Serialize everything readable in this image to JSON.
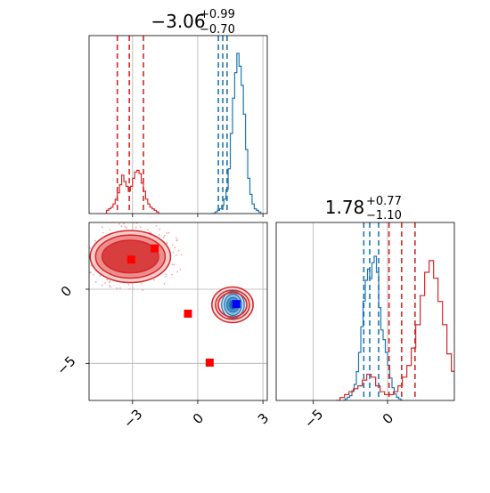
{
  "chart_data": {
    "type": "corner",
    "parameters": [
      {
        "title_main": "−3.06",
        "title_sup": "+0.99",
        "title_sub": "−0.70"
      },
      {
        "title_main": "1.78",
        "title_sup": "+0.77",
        "title_sub": "−1.10"
      }
    ],
    "x1_range": [
      -5.0,
      3.2
    ],
    "x2_range": [
      -7.5,
      4.5
    ],
    "x1_ticks": [
      -3,
      0,
      3
    ],
    "x1_tick_labels": [
      "−3",
      "0",
      "3"
    ],
    "x2_ticks": [
      -5,
      0
    ],
    "x2_tick_labels": [
      "−5",
      "0"
    ],
    "grid": true,
    "colors": {
      "blue": "#1f77b4",
      "red": "#d62728",
      "marker_red": "#ff0000",
      "marker_blue": "#0000ff",
      "grid": "#b0b0b0"
    },
    "series": [
      {
        "color": "blue",
        "hist1": {
          "start": 0.6,
          "step": 0.1,
          "values": [
            0,
            0,
            1,
            2,
            3,
            5,
            9,
            15,
            28,
            50,
            72,
            88,
            100,
            92,
            80,
            62,
            40,
            22,
            12,
            6,
            3,
            2,
            1
          ]
        },
        "quantiles1": [
          0.95,
          1.15,
          1.35
        ],
        "hist2": {
          "start": -3.0,
          "step": 0.15,
          "values": [
            0,
            1,
            2,
            3,
            6,
            10,
            18,
            30,
            46,
            62,
            75,
            82,
            76,
            86,
            90,
            80,
            58,
            44,
            38,
            30,
            22,
            14,
            8,
            4,
            2,
            1,
            0
          ]
        },
        "quantiles2": [
          -1.6,
          -1.2,
          -0.6
        ],
        "contour_center": [
          1.62,
          -1.05
        ],
        "contour_radii": [
          [
            0.52,
            0.9
          ],
          [
            0.4,
            0.72
          ],
          [
            0.28,
            0.5
          ],
          [
            0.16,
            0.3
          ]
        ]
      },
      {
        "color": "red",
        "hist1": {
          "start": -4.2,
          "step": 0.1,
          "values": [
            2,
            3,
            4,
            6,
            9,
            13,
            18,
            24,
            20,
            17,
            14,
            17,
            22,
            26,
            27,
            25,
            19,
            14,
            9,
            6,
            4,
            3,
            2,
            1
          ]
        },
        "quantiles1": [
          -3.7,
          -3.15,
          -2.5
        ],
        "hist2": {
          "start": -3.5,
          "step": 0.3,
          "values": [
            0,
            1,
            2,
            3,
            4,
            5,
            7,
            9,
            8,
            5,
            3,
            2,
            2,
            3,
            5,
            8,
            12,
            18,
            26,
            36,
            44,
            48,
            42,
            34,
            26,
            16,
            10,
            5,
            2,
            1,
            0
          ]
        },
        "quantiles2": [
          0.1,
          0.95,
          1.85
        ],
        "contours": [
          {
            "center": [
              -3.1,
              2.2
            ],
            "radii": [
              [
                1.85,
                1.75
              ],
              [
                1.6,
                1.45
              ],
              [
                1.3,
                1.1
              ]
            ]
          },
          {
            "center": [
              1.6,
              -1.05
            ],
            "radii": [
              [
                0.95,
                1.2
              ]
            ]
          }
        ]
      }
    ],
    "truth_points": [
      {
        "color": "marker_red",
        "x": -3.06,
        "y": 2.0
      },
      {
        "color": "marker_red",
        "x": -1.98,
        "y": 2.75
      },
      {
        "color": "marker_red",
        "x": -0.45,
        "y": -1.65
      },
      {
        "color": "marker_red",
        "x": 0.55,
        "y": -4.95
      },
      {
        "color": "marker_blue",
        "x": 1.78,
        "y": -1.0
      }
    ]
  }
}
